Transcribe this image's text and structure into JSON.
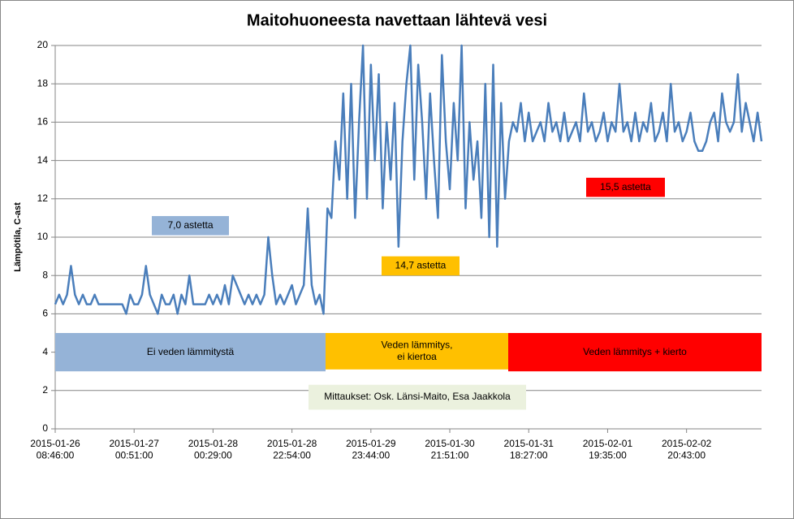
{
  "chart_data": {
    "type": "line",
    "title": "Maitohuoneesta navettaan lähtevä vesi",
    "y_label": "Lämpötila, C-ast",
    "ylim": [
      0,
      20
    ],
    "yticks": [
      0,
      2,
      4,
      6,
      8,
      10,
      12,
      14,
      16,
      18,
      20
    ],
    "grid": true,
    "categories": [
      "2015-01-26\n08:46:00",
      null,
      null,
      null,
      null,
      null,
      null,
      null,
      null,
      null,
      null,
      null,
      null,
      null,
      null,
      null,
      null,
      null,
      null,
      null,
      "2015-01-27\n00:51:00",
      null,
      null,
      null,
      null,
      null,
      null,
      null,
      null,
      null,
      null,
      null,
      null,
      null,
      null,
      null,
      null,
      null,
      null,
      null,
      "2015-01-28\n00:29:00",
      null,
      null,
      null,
      null,
      null,
      null,
      null,
      null,
      null,
      null,
      null,
      null,
      null,
      null,
      null,
      null,
      null,
      null,
      null,
      "2015-01-28\n22:54:00",
      null,
      null,
      null,
      null,
      null,
      null,
      null,
      null,
      null,
      null,
      null,
      null,
      null,
      null,
      null,
      null,
      null,
      null,
      null,
      "2015-01-29\n23:44:00",
      null,
      null,
      null,
      null,
      null,
      null,
      null,
      null,
      null,
      null,
      null,
      null,
      null,
      null,
      null,
      null,
      null,
      null,
      null,
      "2015-01-30\n21:51:00",
      null,
      null,
      null,
      null,
      null,
      null,
      null,
      null,
      null,
      null,
      null,
      null,
      null,
      null,
      null,
      null,
      null,
      null,
      null,
      "2015-01-31\n18:27:00",
      null,
      null,
      null,
      null,
      null,
      null,
      null,
      null,
      null,
      null,
      null,
      null,
      null,
      null,
      null,
      null,
      null,
      null,
      null,
      "2015-02-01\n19:35:00",
      null,
      null,
      null,
      null,
      null,
      null,
      null,
      null,
      null,
      null,
      null,
      null,
      null,
      null,
      null,
      null,
      null,
      null,
      null,
      "2015-02-02\n20:43:00",
      null,
      null,
      null,
      null,
      null,
      null,
      null,
      null,
      null,
      null,
      null,
      null,
      null,
      null,
      null,
      null,
      null,
      null,
      null
    ],
    "series": [
      {
        "name": "Lämpötila",
        "color": "#4a7ebb",
        "values": [
          6.5,
          7,
          6.5,
          7,
          8.5,
          7,
          6.5,
          7,
          6.5,
          6.5,
          7,
          6.5,
          6.5,
          6.5,
          6.5,
          6.5,
          6.5,
          6.5,
          6,
          7,
          6.5,
          6.5,
          7,
          8.5,
          7,
          6.5,
          6,
          7,
          6.5,
          6.5,
          7,
          6,
          7,
          6.5,
          8,
          6.5,
          6.5,
          6.5,
          6.5,
          7,
          6.5,
          7,
          6.5,
          7.5,
          6.5,
          8,
          7.5,
          7,
          6.5,
          7,
          6.5,
          7,
          6.5,
          7,
          10,
          8,
          6.5,
          7,
          6.5,
          7,
          7.5,
          6.5,
          7,
          7.5,
          11.5,
          7.5,
          6.5,
          7,
          6,
          11.5,
          11,
          15,
          13,
          17.5,
          12,
          18,
          11,
          16,
          20,
          12,
          19,
          14,
          18.5,
          11.5,
          16,
          13,
          17,
          9.5,
          15,
          18,
          20,
          13,
          19,
          16,
          12,
          17.5,
          14,
          11,
          19.5,
          15,
          12.5,
          17,
          14,
          20,
          11.5,
          16,
          13,
          15,
          11,
          18,
          10,
          19,
          9.5,
          17,
          12,
          15,
          16,
          15.5,
          17,
          15,
          16.5,
          15,
          15.5,
          16,
          15,
          17,
          15.5,
          16,
          15,
          16.5,
          15,
          15.5,
          16,
          15,
          17.5,
          15.5,
          16,
          15,
          15.5,
          16.5,
          15,
          16,
          15.5,
          18,
          15.5,
          16,
          15,
          16.5,
          15,
          16,
          15.5,
          17,
          15,
          15.5,
          16.5,
          15,
          18,
          15.5,
          16,
          15,
          15.5,
          16.5,
          15,
          14.5,
          14.5,
          15,
          16,
          16.5,
          15,
          17.5,
          16,
          15.5,
          16,
          18.5,
          15.5,
          17,
          16,
          15,
          16.5,
          15
        ]
      }
    ],
    "annotations": [
      {
        "text": "Ei veden lämmitystä",
        "color": "#95b3d7"
      },
      {
        "text": "Veden lämmitys,\nei kiertoa",
        "color": "#ffc000"
      },
      {
        "text": "Veden lämmitys + kierto",
        "color": "#ff0000"
      },
      {
        "text": "7,0 astetta",
        "color": "#95b3d7"
      },
      {
        "text": "14,7 astetta",
        "color": "#ffc000"
      },
      {
        "text": "15,5 astetta",
        "color": "#ff0000"
      },
      {
        "text": "Mittaukset: Osk. Länsi-Maito, Esa Jaakkola",
        "color": "#ebf1de"
      }
    ]
  }
}
